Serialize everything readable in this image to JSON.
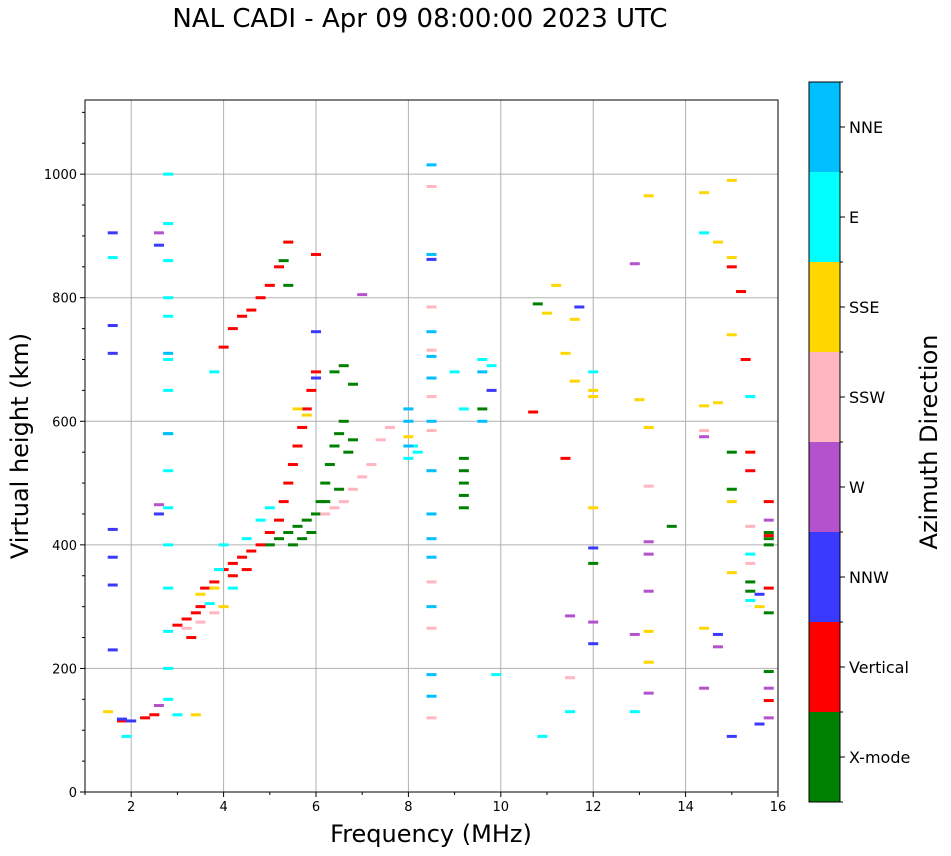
{
  "chart_data": {
    "type": "scatter",
    "title": "NAL CADI - Apr 09 08:00:00 2023 UTC",
    "xlabel": "Frequency (MHz)",
    "ylabel": "Virtual height (km)",
    "xlim": [
      1,
      16
    ],
    "ylim": [
      0,
      1120
    ],
    "xticks": [
      2,
      4,
      6,
      8,
      10,
      12,
      14,
      16
    ],
    "yticks": [
      0,
      200,
      400,
      600,
      800,
      1000
    ],
    "grid": true,
    "colorbar": {
      "label": "Azimuth Direction",
      "categories": [
        {
          "name": "X-mode",
          "color": "#008000"
        },
        {
          "name": "Vertical",
          "color": "#ff0000"
        },
        {
          "name": "NNW",
          "color": "#3a3aff"
        },
        {
          "name": "W",
          "color": "#b452cd"
        },
        {
          "name": "SSW",
          "color": "#ffb6c1"
        },
        {
          "name": "SSE",
          "color": "#ffd700"
        },
        {
          "name": "E",
          "color": "#00ffff"
        },
        {
          "name": "NNE",
          "color": "#00bfff"
        }
      ]
    },
    "series": [
      {
        "name": "X-mode",
        "points": [
          [
            5.0,
            400
          ],
          [
            5.2,
            410
          ],
          [
            5.4,
            420
          ],
          [
            5.5,
            400
          ],
          [
            5.6,
            430
          ],
          [
            5.7,
            410
          ],
          [
            5.8,
            440
          ],
          [
            5.9,
            420
          ],
          [
            6.0,
            450
          ],
          [
            6.1,
            470
          ],
          [
            6.2,
            500
          ],
          [
            6.3,
            530
          ],
          [
            6.4,
            560
          ],
          [
            6.5,
            580
          ],
          [
            6.6,
            600
          ],
          [
            6.7,
            550
          ],
          [
            6.8,
            570
          ],
          [
            6.4,
            680
          ],
          [
            6.6,
            690
          ],
          [
            6.8,
            660
          ],
          [
            6.2,
            470
          ],
          [
            6.5,
            490
          ],
          [
            9.2,
            460
          ],
          [
            9.2,
            480
          ],
          [
            9.2,
            500
          ],
          [
            9.2,
            520
          ],
          [
            9.2,
            540
          ],
          [
            9.6,
            620
          ],
          [
            10.8,
            790
          ],
          [
            12.0,
            370
          ],
          [
            13.7,
            430
          ],
          [
            15.0,
            550
          ],
          [
            15.0,
            490
          ],
          [
            15.4,
            340
          ],
          [
            15.4,
            325
          ],
          [
            15.8,
            410
          ],
          [
            15.8,
            420
          ],
          [
            15.8,
            400
          ],
          [
            15.8,
            290
          ],
          [
            15.8,
            195
          ],
          [
            5.3,
            860
          ],
          [
            5.4,
            820
          ]
        ]
      },
      {
        "name": "Vertical",
        "points": [
          [
            3.0,
            270
          ],
          [
            3.2,
            280
          ],
          [
            3.4,
            290
          ],
          [
            3.5,
            300
          ],
          [
            3.6,
            330
          ],
          [
            3.8,
            340
          ],
          [
            4.0,
            360
          ],
          [
            4.2,
            370
          ],
          [
            4.4,
            380
          ],
          [
            4.6,
            390
          ],
          [
            4.8,
            400
          ],
          [
            5.0,
            420
          ],
          [
            5.2,
            440
          ],
          [
            5.3,
            470
          ],
          [
            5.4,
            500
          ],
          [
            5.5,
            530
          ],
          [
            5.6,
            560
          ],
          [
            5.7,
            590
          ],
          [
            5.8,
            620
          ],
          [
            5.9,
            650
          ],
          [
            6.0,
            680
          ],
          [
            4.0,
            720
          ],
          [
            4.2,
            750
          ],
          [
            4.4,
            770
          ],
          [
            4.6,
            780
          ],
          [
            4.8,
            800
          ],
          [
            5.0,
            820
          ],
          [
            5.2,
            850
          ],
          [
            5.4,
            890
          ],
          [
            4.2,
            350
          ],
          [
            4.5,
            360
          ],
          [
            3.3,
            250
          ],
          [
            6.0,
            870
          ],
          [
            10.7,
            615
          ],
          [
            11.4,
            540
          ],
          [
            15.0,
            850
          ],
          [
            15.2,
            810
          ],
          [
            15.3,
            700
          ],
          [
            15.4,
            550
          ],
          [
            15.4,
            520
          ],
          [
            15.8,
            470
          ],
          [
            15.8,
            415
          ],
          [
            15.8,
            330
          ],
          [
            15.8,
            148
          ],
          [
            1.8,
            115
          ],
          [
            2.3,
            120
          ],
          [
            2.5,
            125
          ]
        ]
      },
      {
        "name": "NNW",
        "points": [
          [
            1.6,
            905
          ],
          [
            1.6,
            755
          ],
          [
            1.6,
            710
          ],
          [
            1.6,
            425
          ],
          [
            1.6,
            380
          ],
          [
            1.6,
            335
          ],
          [
            1.6,
            230
          ],
          [
            2.6,
            885
          ],
          [
            2.6,
            450
          ],
          [
            6.0,
            745
          ],
          [
            8.5,
            862
          ],
          [
            9.8,
            650
          ],
          [
            11.7,
            785
          ],
          [
            12.0,
            395
          ],
          [
            12.0,
            240
          ],
          [
            14.7,
            255
          ],
          [
            15.0,
            90
          ],
          [
            15.6,
            320
          ],
          [
            15.6,
            110
          ],
          [
            1.8,
            118
          ],
          [
            2.0,
            115
          ],
          [
            6.0,
            670
          ]
        ]
      },
      {
        "name": "W",
        "points": [
          [
            2.6,
            905
          ],
          [
            2.6,
            465
          ],
          [
            7.0,
            805
          ],
          [
            12.9,
            855
          ],
          [
            13.2,
            405
          ],
          [
            13.2,
            385
          ],
          [
            13.2,
            325
          ],
          [
            13.2,
            160
          ],
          [
            12.9,
            255
          ],
          [
            14.4,
            575
          ],
          [
            14.4,
            168
          ],
          [
            14.7,
            235
          ],
          [
            15.8,
            440
          ],
          [
            15.8,
            168
          ],
          [
            15.8,
            120
          ],
          [
            2.6,
            140
          ],
          [
            11.5,
            285
          ],
          [
            12.0,
            275
          ]
        ]
      },
      {
        "name": "SSW",
        "points": [
          [
            3.2,
            265
          ],
          [
            3.5,
            275
          ],
          [
            3.8,
            290
          ],
          [
            6.2,
            450
          ],
          [
            6.4,
            460
          ],
          [
            6.6,
            470
          ],
          [
            6.8,
            490
          ],
          [
            7.0,
            510
          ],
          [
            7.2,
            530
          ],
          [
            7.4,
            570
          ],
          [
            7.6,
            590
          ],
          [
            8.5,
            980
          ],
          [
            8.5,
            785
          ],
          [
            8.5,
            715
          ],
          [
            8.5,
            640
          ],
          [
            8.5,
            585
          ],
          [
            8.5,
            340
          ],
          [
            8.5,
            265
          ],
          [
            8.5,
            120
          ],
          [
            13.2,
            495
          ],
          [
            14.4,
            585
          ],
          [
            15.4,
            430
          ],
          [
            15.4,
            370
          ],
          [
            11.5,
            185
          ]
        ]
      },
      {
        "name": "SSE",
        "points": [
          [
            3.5,
            320
          ],
          [
            3.8,
            330
          ],
          [
            4.0,
            300
          ],
          [
            5.6,
            620
          ],
          [
            5.8,
            610
          ],
          [
            8.0,
            575
          ],
          [
            11.2,
            820
          ],
          [
            11.0,
            775
          ],
          [
            11.4,
            710
          ],
          [
            11.6,
            765
          ],
          [
            11.6,
            665
          ],
          [
            12.0,
            650
          ],
          [
            12.0,
            640
          ],
          [
            12.0,
            460
          ],
          [
            13.0,
            635
          ],
          [
            13.2,
            965
          ],
          [
            13.2,
            590
          ],
          [
            13.2,
            260
          ],
          [
            13.2,
            210
          ],
          [
            14.4,
            970
          ],
          [
            14.4,
            625
          ],
          [
            14.4,
            265
          ],
          [
            14.7,
            890
          ],
          [
            14.7,
            630
          ],
          [
            15.0,
            990
          ],
          [
            15.0,
            865
          ],
          [
            15.0,
            740
          ],
          [
            15.0,
            470
          ],
          [
            15.0,
            355
          ],
          [
            15.6,
            300
          ],
          [
            1.5,
            130
          ],
          [
            3.4,
            125
          ]
        ]
      },
      {
        "name": "E",
        "points": [
          [
            2.8,
            1000
          ],
          [
            2.8,
            920
          ],
          [
            2.8,
            860
          ],
          [
            2.8,
            800
          ],
          [
            2.8,
            770
          ],
          [
            2.8,
            700
          ],
          [
            2.8,
            650
          ],
          [
            2.8,
            580
          ],
          [
            2.8,
            520
          ],
          [
            2.8,
            460
          ],
          [
            2.8,
            400
          ],
          [
            2.8,
            330
          ],
          [
            2.8,
            260
          ],
          [
            2.8,
            200
          ],
          [
            2.8,
            150
          ],
          [
            1.6,
            865
          ],
          [
            3.8,
            680
          ],
          [
            3.9,
            360
          ],
          [
            4.2,
            330
          ],
          [
            4.5,
            410
          ],
          [
            4.8,
            440
          ],
          [
            5.0,
            460
          ],
          [
            4.0,
            400
          ],
          [
            3.7,
            305
          ],
          [
            8.0,
            540
          ],
          [
            8.1,
            560
          ],
          [
            8.2,
            550
          ],
          [
            9.0,
            680
          ],
          [
            9.2,
            620
          ],
          [
            9.6,
            700
          ],
          [
            9.8,
            690
          ],
          [
            9.9,
            190
          ],
          [
            10.9,
            90
          ],
          [
            11.5,
            130
          ],
          [
            12.0,
            680
          ],
          [
            12.9,
            130
          ],
          [
            14.4,
            905
          ],
          [
            15.4,
            640
          ],
          [
            15.4,
            385
          ],
          [
            15.4,
            310
          ],
          [
            1.9,
            90
          ],
          [
            3.0,
            125
          ]
        ]
      },
      {
        "name": "NNE",
        "points": [
          [
            8.5,
            1015
          ],
          [
            8.5,
            870
          ],
          [
            8.5,
            745
          ],
          [
            8.5,
            705
          ],
          [
            8.5,
            670
          ],
          [
            8.5,
            600
          ],
          [
            8.5,
            520
          ],
          [
            8.5,
            450
          ],
          [
            8.5,
            410
          ],
          [
            8.5,
            380
          ],
          [
            8.5,
            300
          ],
          [
            8.5,
            190
          ],
          [
            8.5,
            155
          ],
          [
            8.0,
            620
          ],
          [
            8.0,
            600
          ],
          [
            8.0,
            560
          ],
          [
            9.6,
            600
          ],
          [
            9.6,
            680
          ],
          [
            2.8,
            710
          ],
          [
            2.8,
            580
          ]
        ]
      }
    ]
  }
}
